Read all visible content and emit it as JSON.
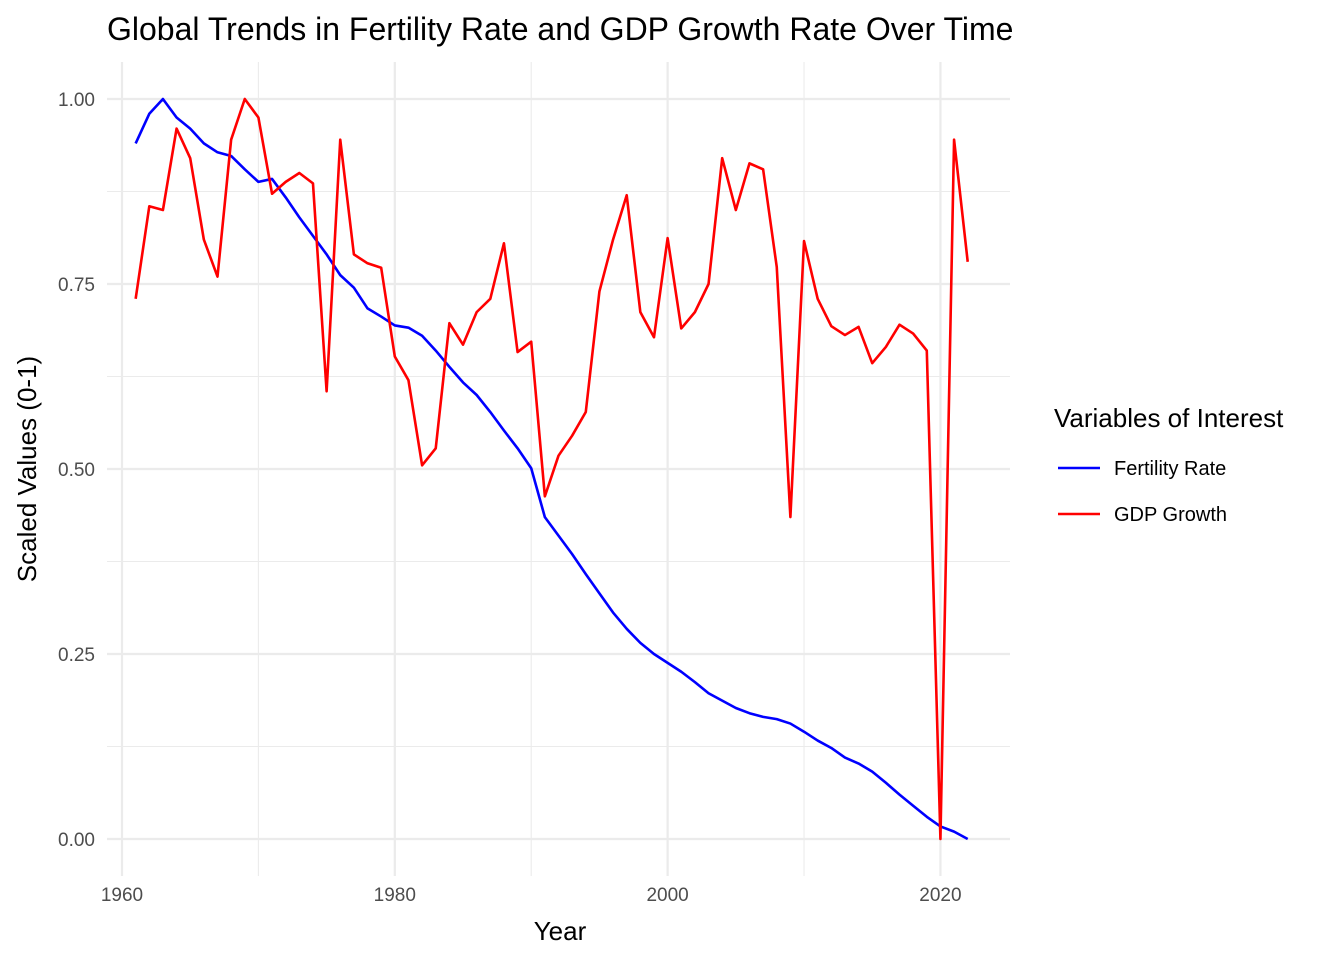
{
  "chart_data": {
    "type": "line",
    "title": "Global Trends in Fertility Rate and GDP Growth Rate Over Time",
    "xlabel": "Year",
    "ylabel": "Scaled Values (0-1)",
    "xlim": [
      1958.9,
      2025.1
    ],
    "ylim": [
      -0.05,
      1.05
    ],
    "x_ticks": [
      1960,
      1980,
      2000,
      2020
    ],
    "y_ticks": [
      0.0,
      0.25,
      0.5,
      0.75,
      1.0
    ],
    "y_tick_labels": [
      "0.00",
      "0.25",
      "0.50",
      "0.75",
      "1.00"
    ],
    "legend": {
      "title": "Variables of Interest",
      "position": "right"
    },
    "grid": true,
    "x": [
      1961,
      1962,
      1963,
      1964,
      1965,
      1966,
      1967,
      1968,
      1969,
      1970,
      1971,
      1972,
      1973,
      1974,
      1975,
      1976,
      1977,
      1978,
      1979,
      1980,
      1981,
      1982,
      1983,
      1984,
      1985,
      1986,
      1987,
      1988,
      1989,
      1990,
      1991,
      1992,
      1993,
      1994,
      1995,
      1996,
      1997,
      1998,
      1999,
      2000,
      2001,
      2002,
      2003,
      2004,
      2005,
      2006,
      2007,
      2008,
      2009,
      2010,
      2011,
      2012,
      2013,
      2014,
      2015,
      2016,
      2017,
      2018,
      2019,
      2020,
      2021,
      2022
    ],
    "series": [
      {
        "name": "Fertility Rate",
        "color": "#0000FF",
        "values": [
          0.94,
          0.98,
          1.0,
          0.975,
          0.96,
          0.94,
          0.928,
          0.923,
          0.905,
          0.888,
          0.892,
          0.867,
          0.84,
          0.815,
          0.79,
          0.762,
          0.745,
          0.717,
          0.706,
          0.694,
          0.691,
          0.68,
          0.66,
          0.638,
          0.617,
          0.6,
          0.577,
          0.552,
          0.528,
          0.501,
          0.435,
          0.41,
          0.385,
          0.358,
          0.332,
          0.306,
          0.284,
          0.265,
          0.25,
          0.238,
          0.226,
          0.212,
          0.197,
          0.187,
          0.177,
          0.17,
          0.165,
          0.162,
          0.156,
          0.145,
          0.133,
          0.123,
          0.11,
          0.102,
          0.091,
          0.076,
          0.06,
          0.045,
          0.03,
          0.017,
          0.01,
          0.0
        ]
      },
      {
        "name": "GDP Growth",
        "color": "#FF0000",
        "values": [
          0.73,
          0.855,
          0.85,
          0.96,
          0.92,
          0.81,
          0.76,
          0.945,
          1.0,
          0.975,
          0.872,
          0.888,
          0.9,
          0.886,
          0.605,
          0.945,
          0.79,
          0.778,
          0.772,
          0.652,
          0.62,
          0.505,
          0.528,
          0.697,
          0.668,
          0.712,
          0.73,
          0.805,
          0.658,
          0.672,
          0.463,
          0.518,
          0.545,
          0.577,
          0.74,
          0.81,
          0.87,
          0.712,
          0.678,
          0.812,
          0.69,
          0.712,
          0.75,
          0.92,
          0.85,
          0.913,
          0.905,
          0.773,
          0.435,
          0.808,
          0.73,
          0.693,
          0.681,
          0.692,
          0.643,
          0.665,
          0.695,
          0.683,
          0.66,
          0.0,
          0.945,
          0.78
        ]
      }
    ]
  }
}
